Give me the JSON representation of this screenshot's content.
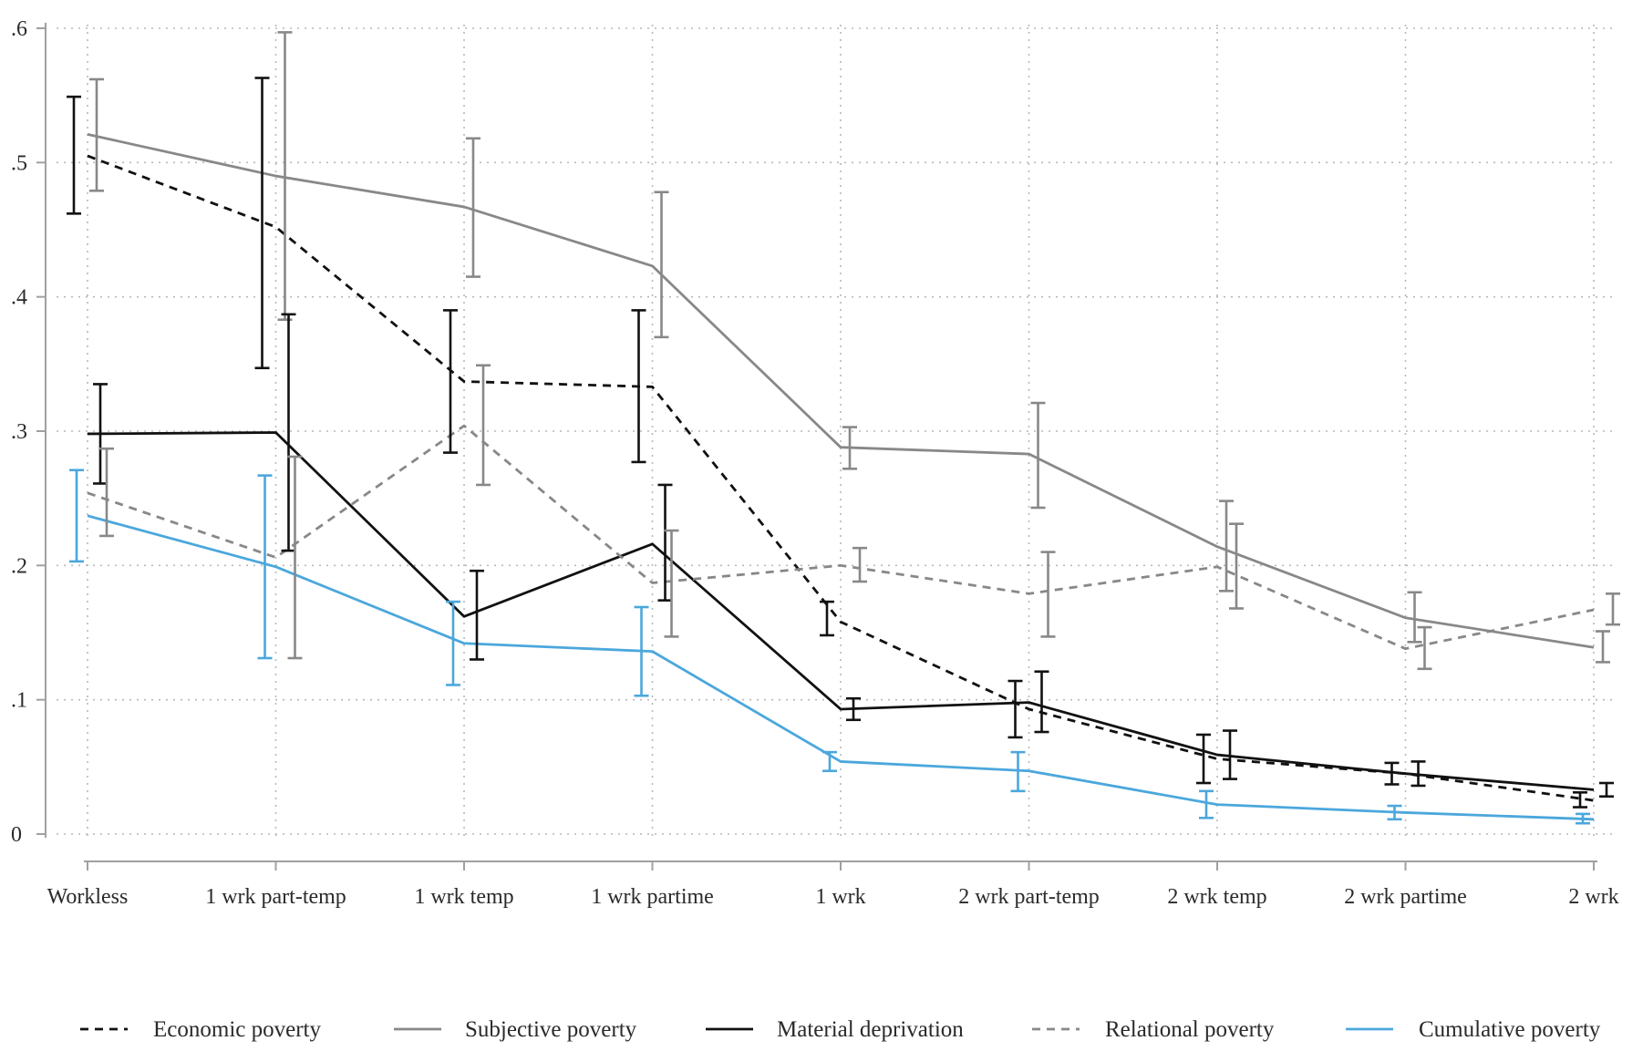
{
  "chart_data": {
    "type": "line",
    "title": "",
    "xlabel": "",
    "ylabel": "",
    "categories": [
      "Workless",
      "1 wrk part-temp",
      "1 wrk temp",
      "1 wrk partime",
      "1 wrk",
      "2 wrk part-temp",
      "2 wrk temp",
      "2 wrk partime",
      "2 wrk"
    ],
    "ylim": [
      0,
      0.6
    ],
    "yticks": [
      0,
      0.1,
      0.2,
      0.3,
      0.4,
      0.5,
      0.6
    ],
    "ytick_labels": [
      "0",
      ".1",
      ".2",
      ".3",
      ".4",
      ".5",
      ".6"
    ],
    "grid": true,
    "legend_position": "bottom",
    "error_bars": true,
    "series": [
      {
        "name": "Economic poverty",
        "color": "#111111",
        "line_style": "dashed",
        "values": [
          0.505,
          0.452,
          0.337,
          0.333,
          0.158,
          0.093,
          0.056,
          0.045,
          0.025
        ],
        "ci_low": [
          0.462,
          0.347,
          0.284,
          0.277,
          0.148,
          0.072,
          0.038,
          0.037,
          0.02
        ],
        "ci_high": [
          0.549,
          0.563,
          0.39,
          0.39,
          0.173,
          0.114,
          0.074,
          0.053,
          0.031
        ]
      },
      {
        "name": "Subjective poverty",
        "color": "#888888",
        "line_style": "solid",
        "values": [
          0.521,
          0.49,
          0.467,
          0.423,
          0.288,
          0.283,
          0.214,
          0.161,
          0.139
        ],
        "ci_low": [
          0.479,
          0.383,
          0.415,
          0.37,
          0.272,
          0.243,
          0.181,
          0.143,
          0.128
        ],
        "ci_high": [
          0.562,
          0.597,
          0.518,
          0.478,
          0.303,
          0.321,
          0.248,
          0.18,
          0.151
        ]
      },
      {
        "name": "Material deprivation",
        "color": "#111111",
        "line_style": "solid",
        "values": [
          0.298,
          0.299,
          0.162,
          0.216,
          0.093,
          0.098,
          0.059,
          0.045,
          0.033
        ],
        "ci_low": [
          0.261,
          0.211,
          0.13,
          0.174,
          0.085,
          0.076,
          0.041,
          0.036,
          0.028
        ],
        "ci_high": [
          0.335,
          0.387,
          0.196,
          0.26,
          0.101,
          0.121,
          0.077,
          0.054,
          0.038
        ]
      },
      {
        "name": "Relational poverty",
        "color": "#888888",
        "line_style": "dashed",
        "values": [
          0.254,
          0.206,
          0.304,
          0.187,
          0.2,
          0.179,
          0.199,
          0.138,
          0.167
        ],
        "ci_low": [
          0.222,
          0.131,
          0.26,
          0.147,
          0.188,
          0.147,
          0.168,
          0.123,
          0.156
        ],
        "ci_high": [
          0.287,
          0.281,
          0.349,
          0.226,
          0.213,
          0.21,
          0.231,
          0.154,
          0.179
        ]
      },
      {
        "name": "Cumulative poverty",
        "color": "#4ba7dc",
        "line_style": "solid",
        "values": [
          0.237,
          0.199,
          0.142,
          0.136,
          0.054,
          0.047,
          0.022,
          0.016,
          0.011
        ],
        "ci_low": [
          0.203,
          0.131,
          0.111,
          0.103,
          0.047,
          0.032,
          0.012,
          0.011,
          0.008
        ],
        "ci_high": [
          0.271,
          0.267,
          0.173,
          0.169,
          0.061,
          0.061,
          0.032,
          0.021,
          0.015
        ]
      }
    ]
  }
}
